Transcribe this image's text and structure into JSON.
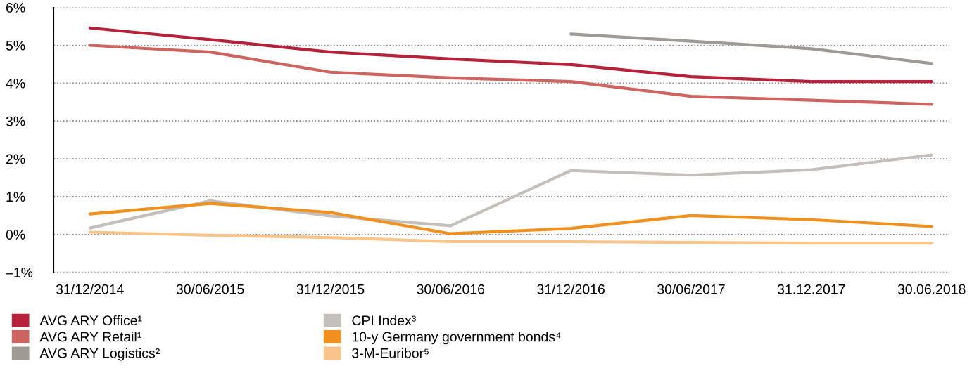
{
  "chart_data": {
    "type": "line",
    "categories": [
      "31/12/2014",
      "30/06/2015",
      "31/12/2015",
      "30/06/2016",
      "31/12/2016",
      "30/06/2017",
      "31.12.2017",
      "30.06.2018"
    ],
    "series": [
      {
        "name": "AVG ARY Office¹",
        "color": "#b5223a",
        "values": [
          5.46,
          5.15,
          4.82,
          4.64,
          4.49,
          4.17,
          4.04,
          4.04
        ]
      },
      {
        "name": "AVG ARY Retail¹",
        "color": "#cd6460",
        "values": [
          5.0,
          4.82,
          4.29,
          4.14,
          4.04,
          3.65,
          3.55,
          3.44
        ]
      },
      {
        "name": "AVG ARY Logistics²",
        "color": "#9e9a94",
        "values": [
          null,
          null,
          null,
          null,
          5.3,
          5.11,
          4.91,
          4.52
        ]
      },
      {
        "name": "CPI Index³",
        "color": "#c4bfbb",
        "values": [
          0.17,
          0.89,
          0.49,
          0.23,
          1.69,
          1.57,
          1.71,
          2.1
        ]
      },
      {
        "name": "10-y Germany government bonds⁴",
        "color": "#f0901e",
        "values": [
          0.54,
          0.82,
          0.58,
          0.02,
          0.16,
          0.5,
          0.39,
          0.21
        ]
      },
      {
        "name": "3-M-Euribor⁵",
        "color": "#f8c48a",
        "values": [
          0.06,
          -0.02,
          -0.08,
          -0.19,
          -0.19,
          -0.21,
          -0.23,
          -0.23
        ]
      }
    ],
    "ylim": [
      -1,
      6
    ],
    "yticks": [
      {
        "value": -1,
        "label": "–1%"
      },
      {
        "value": 0,
        "label": "0%"
      },
      {
        "value": 1,
        "label": "1%"
      },
      {
        "value": 2,
        "label": "2%"
      },
      {
        "value": 3,
        "label": "3%"
      },
      {
        "value": 4,
        "label": "4%"
      },
      {
        "value": 5,
        "label": "5%"
      },
      {
        "value": 6,
        "label": "6%"
      }
    ],
    "grid": "y",
    "legend": "bottom",
    "marker": "none",
    "line_style": "solid"
  }
}
